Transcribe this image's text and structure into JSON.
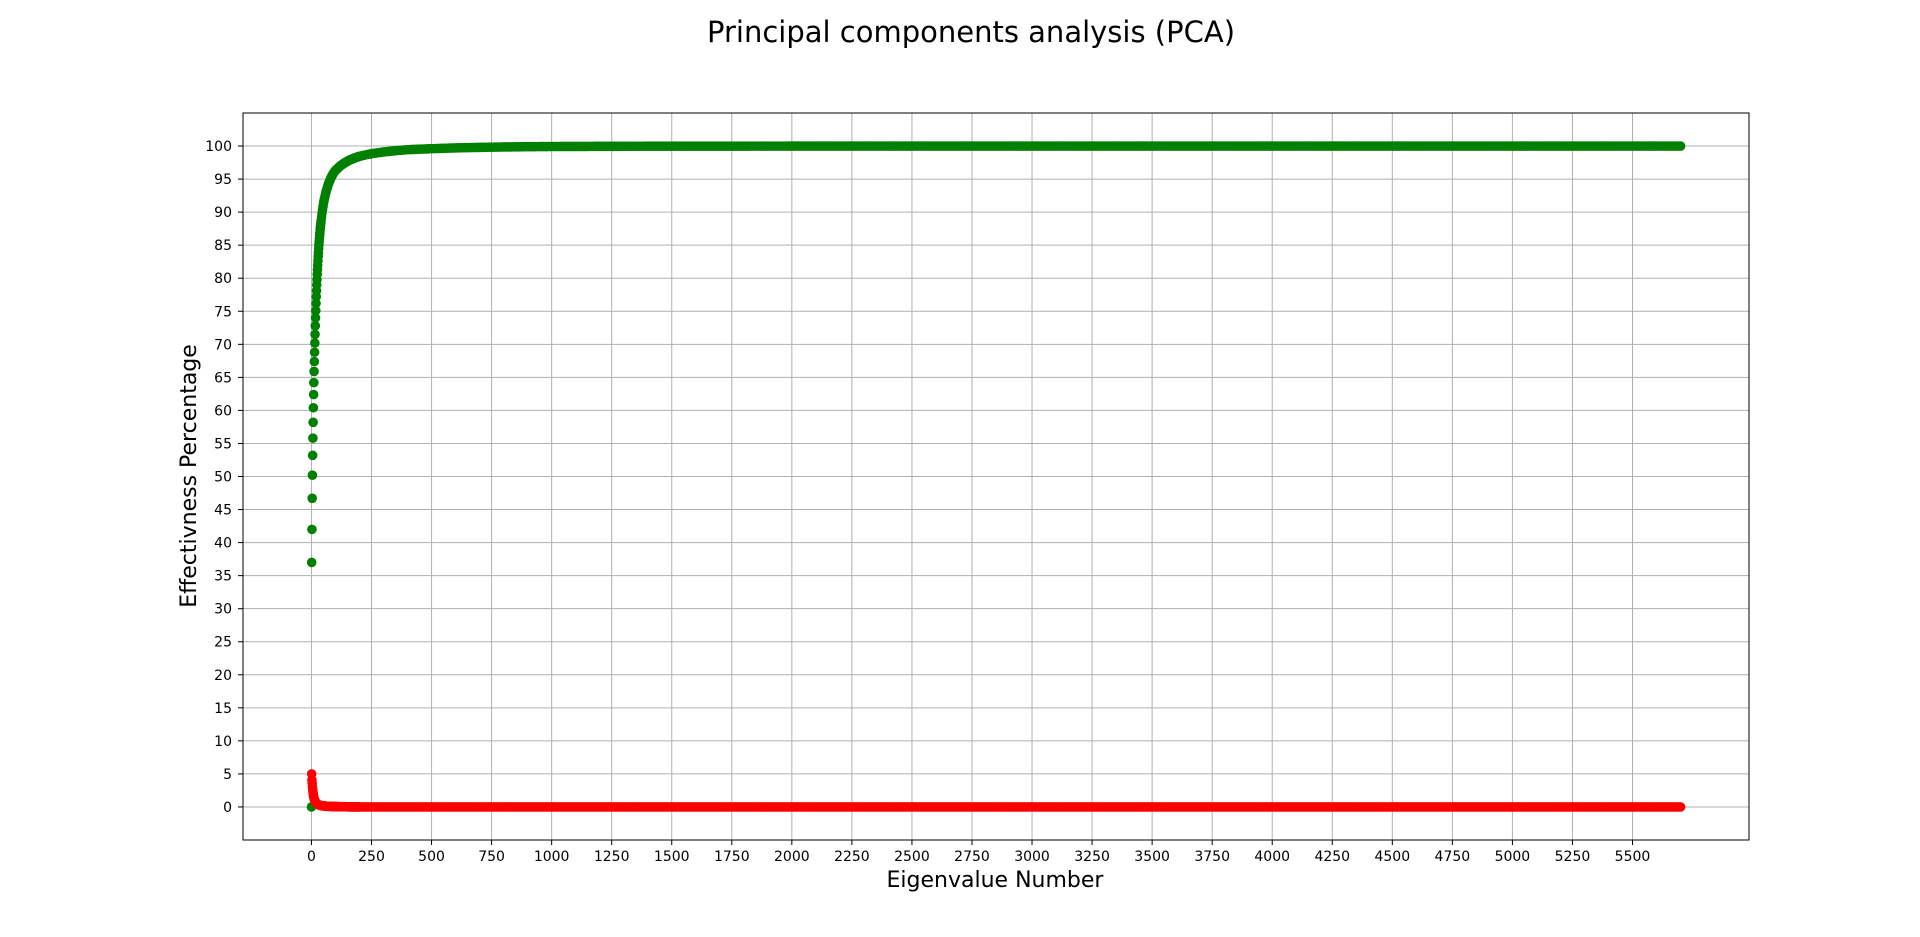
{
  "chart_data": {
    "type": "scatter",
    "title": "Principal components analysis (PCA)",
    "xlabel": "Eigenvalue Number",
    "ylabel": "Effectivness Percentage",
    "xlim": [
      -285,
      5985
    ],
    "ylim": [
      -5,
      105
    ],
    "xticks": [
      0,
      250,
      500,
      750,
      1000,
      1250,
      1500,
      1750,
      2000,
      2250,
      2500,
      2750,
      3000,
      3250,
      3500,
      3750,
      4000,
      4250,
      4500,
      4750,
      5000,
      5250,
      5500
    ],
    "yticks": [
      0,
      5,
      10,
      15,
      20,
      25,
      30,
      35,
      40,
      45,
      50,
      55,
      60,
      65,
      70,
      75,
      80,
      85,
      90,
      95,
      100
    ],
    "grid": true,
    "series": [
      {
        "color": "#008000",
        "points": [
          [
            0,
            0
          ],
          [
            1,
            37
          ],
          [
            2,
            42
          ],
          [
            3,
            46.7
          ],
          [
            4,
            50.2
          ],
          [
            5,
            53.2
          ],
          [
            6,
            55.8
          ],
          [
            7,
            58.2
          ],
          [
            8,
            60.4
          ],
          [
            9,
            62.4
          ],
          [
            10,
            64.2
          ],
          [
            11,
            65.9
          ],
          [
            12,
            67.4
          ],
          [
            13,
            68.8
          ],
          [
            14,
            70.2
          ],
          [
            15,
            71.5
          ],
          [
            16,
            72.8
          ],
          [
            17,
            74
          ],
          [
            18,
            75.1
          ],
          [
            19,
            76.2
          ],
          [
            20,
            77.2
          ],
          [
            22,
            79
          ],
          [
            24,
            80.6
          ],
          [
            26,
            82
          ],
          [
            28,
            83.3
          ],
          [
            30,
            84.5
          ],
          [
            33,
            86
          ],
          [
            36,
            87.3
          ],
          [
            40,
            88.7
          ],
          [
            45,
            90.1
          ],
          [
            50,
            91.3
          ],
          [
            55,
            92.2
          ],
          [
            60,
            93
          ],
          [
            70,
            94.2
          ],
          [
            80,
            95.1
          ],
          [
            90,
            95.8
          ],
          [
            100,
            96.3
          ],
          [
            120,
            97
          ],
          [
            140,
            97.5
          ],
          [
            160,
            97.9
          ],
          [
            180,
            98.2
          ],
          [
            200,
            98.45
          ],
          [
            250,
            98.85
          ],
          [
            300,
            99.1
          ],
          [
            350,
            99.3
          ],
          [
            400,
            99.45
          ],
          [
            500,
            99.6
          ],
          [
            600,
            99.72
          ],
          [
            700,
            99.8
          ],
          [
            800,
            99.86
          ],
          [
            900,
            99.9
          ],
          [
            1000,
            99.93
          ],
          [
            1250,
            99.96
          ],
          [
            1500,
            99.98
          ],
          [
            2000,
            99.99
          ],
          [
            2500,
            100
          ],
          [
            5700,
            100
          ]
        ]
      },
      {
        "color": "#ff0000",
        "points": [
          [
            1,
            5
          ],
          [
            2,
            4.1
          ],
          [
            3,
            3.6
          ],
          [
            4,
            3.1
          ],
          [
            5,
            2.7
          ],
          [
            6,
            2.4
          ],
          [
            7,
            2.1
          ],
          [
            8,
            1.85
          ],
          [
            9,
            1.6
          ],
          [
            10,
            1.4
          ],
          [
            12,
            1.15
          ],
          [
            14,
            0.95
          ],
          [
            16,
            0.8
          ],
          [
            18,
            0.68
          ],
          [
            20,
            0.58
          ],
          [
            25,
            0.42
          ],
          [
            30,
            0.32
          ],
          [
            35,
            0.26
          ],
          [
            40,
            0.22
          ],
          [
            50,
            0.16
          ],
          [
            60,
            0.12
          ],
          [
            80,
            0.08
          ],
          [
            100,
            0.06
          ],
          [
            130,
            0.04
          ],
          [
            160,
            0.02
          ],
          [
            200,
            0.01
          ],
          [
            300,
            0
          ],
          [
            5700,
            0
          ]
        ]
      }
    ]
  }
}
